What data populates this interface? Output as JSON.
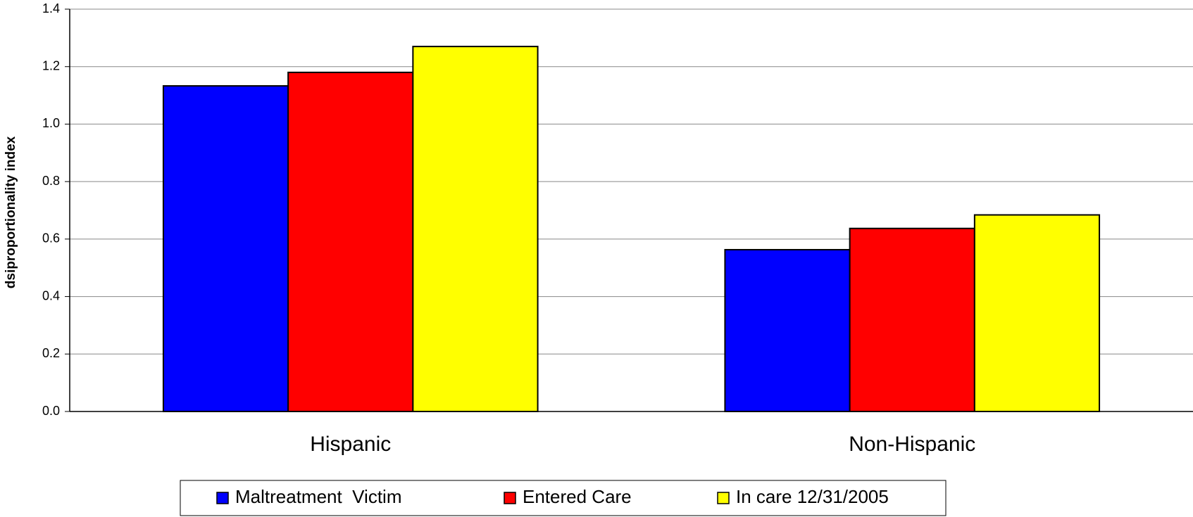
{
  "chart_data": {
    "type": "bar",
    "y_label": "dsiproportionality index",
    "categories": [
      "Hispanic",
      "Non-Hispanic"
    ],
    "series": [
      {
        "name": "Maltreatment  Victim",
        "color": "#0000ff",
        "values": [
          1.133,
          0.563
        ]
      },
      {
        "name": "Entered Care",
        "color": "#ff0000",
        "values": [
          1.18,
          0.637
        ]
      },
      {
        "name": "In care 12/31/2005",
        "color": "#ffff00",
        "values": [
          1.27,
          0.684
        ]
      }
    ],
    "ylim": [
      0,
      1.4
    ],
    "yticks": [
      {
        "value": 0,
        "label": "0.0"
      },
      0.2,
      0.4,
      0.6,
      0.8,
      {
        "value": 1,
        "label": "1.0"
      },
      1.2,
      1.4
    ],
    "grid": true,
    "legend": "bottom"
  }
}
